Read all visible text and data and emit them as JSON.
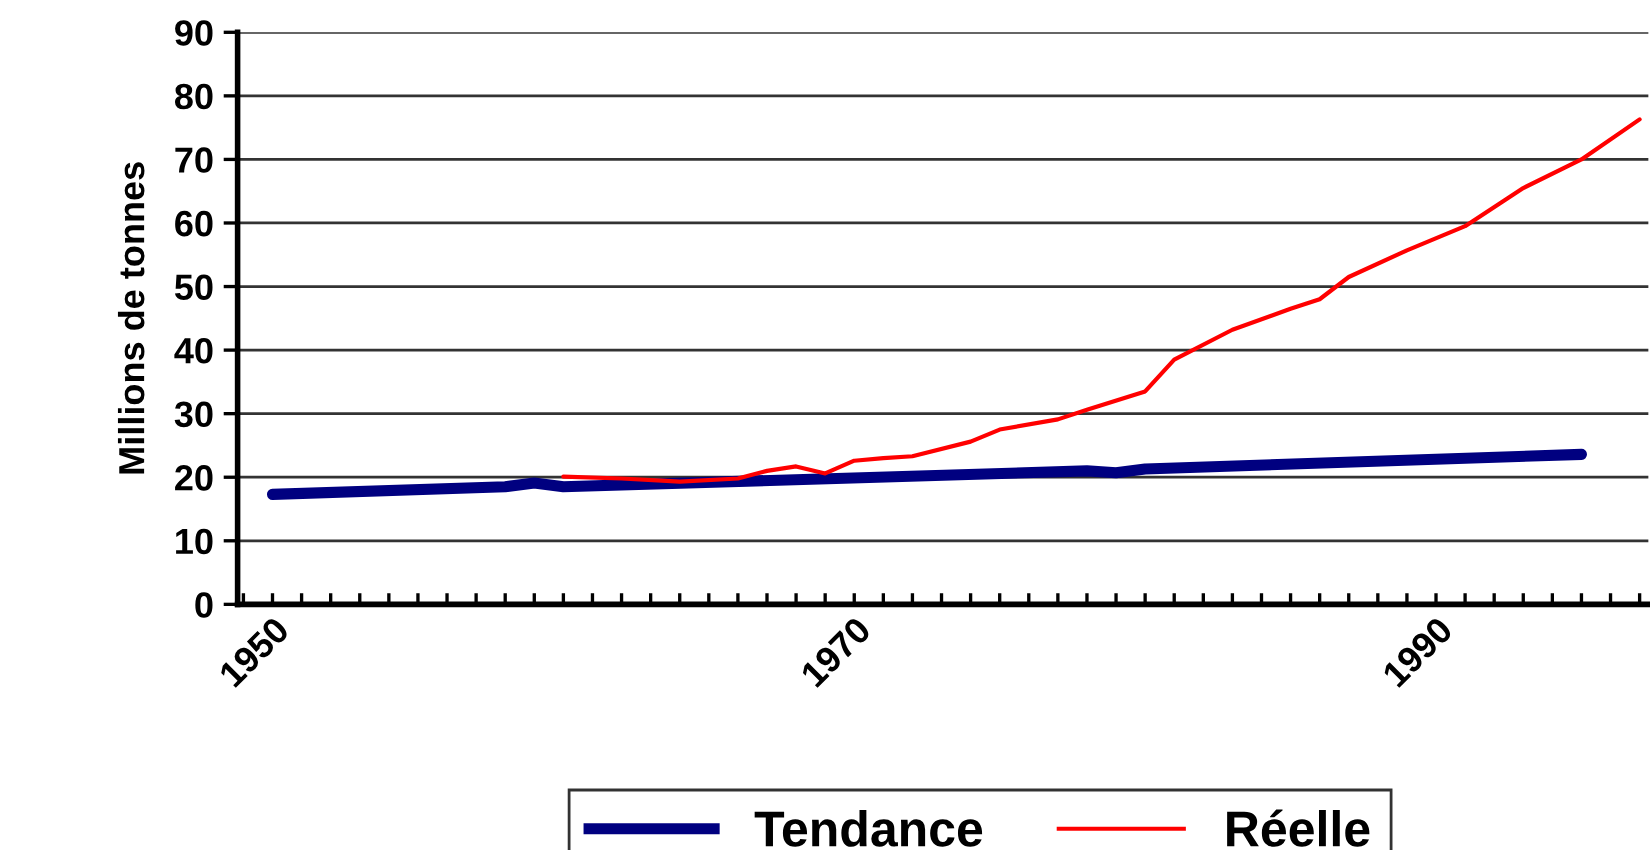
{
  "chart_data": {
    "type": "line",
    "ylabel": "Millions de tonnes",
    "xlim": [
      1948.8,
      1997.3
    ],
    "ylim": [
      0,
      90
    ],
    "yticks": [
      0,
      10,
      20,
      30,
      40,
      50,
      60,
      70,
      80,
      90
    ],
    "xticks": [
      {
        "value": 1949,
        "label": null
      },
      1950,
      {
        "value": 1951,
        "label": null
      },
      {
        "value": 1952,
        "label": null
      },
      {
        "value": 1953,
        "label": null
      },
      {
        "value": 1954,
        "label": null
      },
      {
        "value": 1955,
        "label": null
      },
      {
        "value": 1956,
        "label": null
      },
      {
        "value": 1957,
        "label": null
      },
      {
        "value": 1958,
        "label": null
      },
      {
        "value": 1959,
        "label": null
      },
      {
        "value": 1960,
        "label": null
      },
      {
        "value": 1961,
        "label": null
      },
      {
        "value": 1962,
        "label": null
      },
      {
        "value": 1963,
        "label": null
      },
      {
        "value": 1964,
        "label": null
      },
      {
        "value": 1965,
        "label": null
      },
      {
        "value": 1966,
        "label": null
      },
      {
        "value": 1967,
        "label": null
      },
      {
        "value": 1968,
        "label": null
      },
      {
        "value": 1969,
        "label": null
      },
      1970,
      {
        "value": 1971,
        "label": null
      },
      {
        "value": 1972,
        "label": null
      },
      {
        "value": 1973,
        "label": null
      },
      {
        "value": 1974,
        "label": null
      },
      {
        "value": 1975,
        "label": null
      },
      {
        "value": 1976,
        "label": null
      },
      {
        "value": 1977,
        "label": null
      },
      {
        "value": 1978,
        "label": null
      },
      {
        "value": 1979,
        "label": null
      },
      {
        "value": 1980,
        "label": null
      },
      {
        "value": 1981,
        "label": null
      },
      {
        "value": 1982,
        "label": null
      },
      {
        "value": 1983,
        "label": null
      },
      {
        "value": 1984,
        "label": null
      },
      {
        "value": 1985,
        "label": null
      },
      {
        "value": 1986,
        "label": null
      },
      {
        "value": 1987,
        "label": null
      },
      {
        "value": 1988,
        "label": null
      },
      {
        "value": 1989,
        "label": null
      },
      1990,
      {
        "value": 1991,
        "label": null
      },
      {
        "value": 1992,
        "label": null
      },
      {
        "value": 1993,
        "label": null
      },
      {
        "value": 1994,
        "label": null
      },
      {
        "value": 1995,
        "label": null
      },
      {
        "value": 1996,
        "label": null
      },
      {
        "value": 1997,
        "label": null
      }
    ],
    "grid": "y",
    "legend": "bottom",
    "marker": "none",
    "line_style": "solid",
    "series": [
      {
        "name": "Tendance",
        "color": "#000080",
        "x": [
          1950,
          1958,
          1959,
          1960,
          1978,
          1979,
          1980,
          1995
        ],
        "values": [
          17.3,
          18.5,
          19.1,
          18.5,
          21.0,
          20.7,
          21.3,
          23.6
        ]
      },
      {
        "name": "Réelle",
        "color": "#ff0000",
        "x": [
          1960,
          1962,
          1964,
          1966,
          1967,
          1968,
          1969,
          1970,
          1971,
          1972,
          1974,
          1975,
          1977,
          1978,
          1980,
          1981,
          1983,
          1985,
          1986,
          1987,
          1989,
          1991,
          1993,
          1995,
          1997
        ],
        "values": [
          20.1,
          19.8,
          19.3,
          19.8,
          21.0,
          21.7,
          20.6,
          22.6,
          23.0,
          23.3,
          25.6,
          27.5,
          29.1,
          30.6,
          33.5,
          38.5,
          43.2,
          46.5,
          48.0,
          51.5,
          55.7,
          59.5,
          65.5,
          70.0,
          76.3
        ]
      }
    ]
  }
}
